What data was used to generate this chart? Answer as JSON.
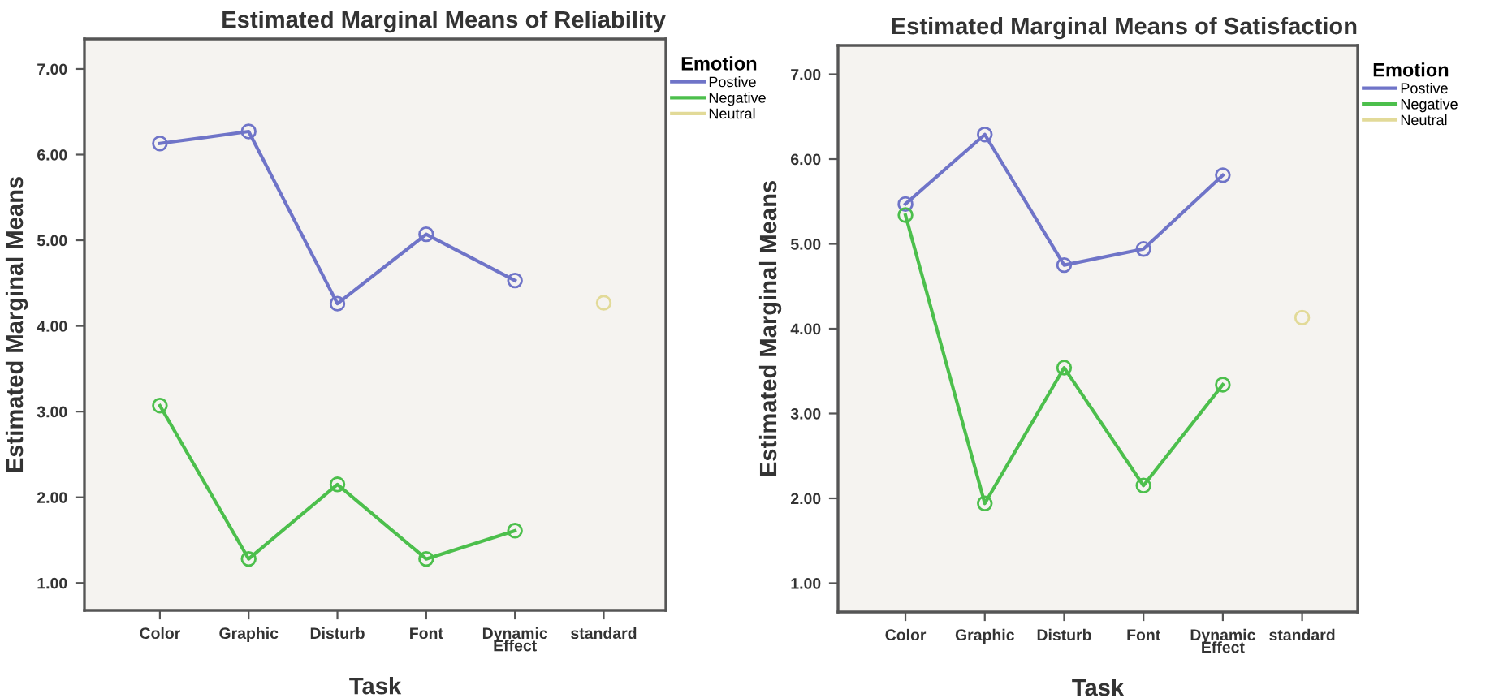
{
  "chart_data": [
    {
      "type": "line",
      "title": "Estimated Marginal Means of Reliability",
      "xlabel": "Task",
      "ylabel": "Estimated Marginal Means",
      "legend_title": "Emotion",
      "categories": [
        "Color",
        "Graphic",
        "Disturb",
        "Font",
        "Dynamic\nEffect",
        "standard"
      ],
      "ylim": [
        0.68,
        7.35
      ],
      "yticks": [
        {
          "value": 1,
          "label": "1.00"
        },
        {
          "value": 2,
          "label": "2.00"
        },
        {
          "value": 3,
          "label": "3.00"
        },
        {
          "value": 4,
          "label": "4.00"
        },
        {
          "value": 5,
          "label": "5.00"
        },
        {
          "value": 6,
          "label": "6.00"
        },
        {
          "value": 7,
          "label": "7.00"
        }
      ],
      "marker": "circle",
      "legend": "right",
      "grid": false,
      "series": [
        {
          "name": "Postive",
          "color": "#6f74c8",
          "values": [
            6.13,
            6.27,
            4.26,
            5.07,
            4.53,
            null
          ]
        },
        {
          "name": "Negative",
          "color": "#4cbf4c",
          "values": [
            3.07,
            1.28,
            2.15,
            1.28,
            1.61,
            null
          ]
        },
        {
          "name": "Neutral",
          "color": "#e2da98",
          "values": [
            null,
            null,
            null,
            null,
            null,
            4.27
          ]
        }
      ]
    },
    {
      "type": "line",
      "title": "Estimated Marginal Means of Satisfaction",
      "xlabel": "Task",
      "ylabel": "Estimated Marginal Means",
      "legend_title": "Emotion",
      "categories": [
        "Color",
        "Graphic",
        "Disturb",
        "Font",
        "Dynamic\nEffect",
        "standard"
      ],
      "ylim": [
        0.66,
        7.34
      ],
      "yticks": [
        {
          "value": 1,
          "label": "1.00"
        },
        {
          "value": 2,
          "label": "2.00"
        },
        {
          "value": 3,
          "label": "3.00"
        },
        {
          "value": 4,
          "label": "4.00"
        },
        {
          "value": 5,
          "label": "5.00"
        },
        {
          "value": 6,
          "label": "6.00"
        },
        {
          "value": 7,
          "label": "7.00"
        }
      ],
      "marker": "circle",
      "legend": "right",
      "grid": false,
      "series": [
        {
          "name": "Postive",
          "color": "#6f74c8",
          "values": [
            5.47,
            6.29,
            4.75,
            4.94,
            5.81,
            null
          ]
        },
        {
          "name": "Negative",
          "color": "#4cbf4c",
          "values": [
            5.34,
            1.94,
            3.54,
            2.15,
            3.34,
            null
          ]
        },
        {
          "name": "Neutral",
          "color": "#e2da98",
          "values": [
            null,
            null,
            null,
            null,
            null,
            4.13
          ]
        }
      ]
    }
  ]
}
